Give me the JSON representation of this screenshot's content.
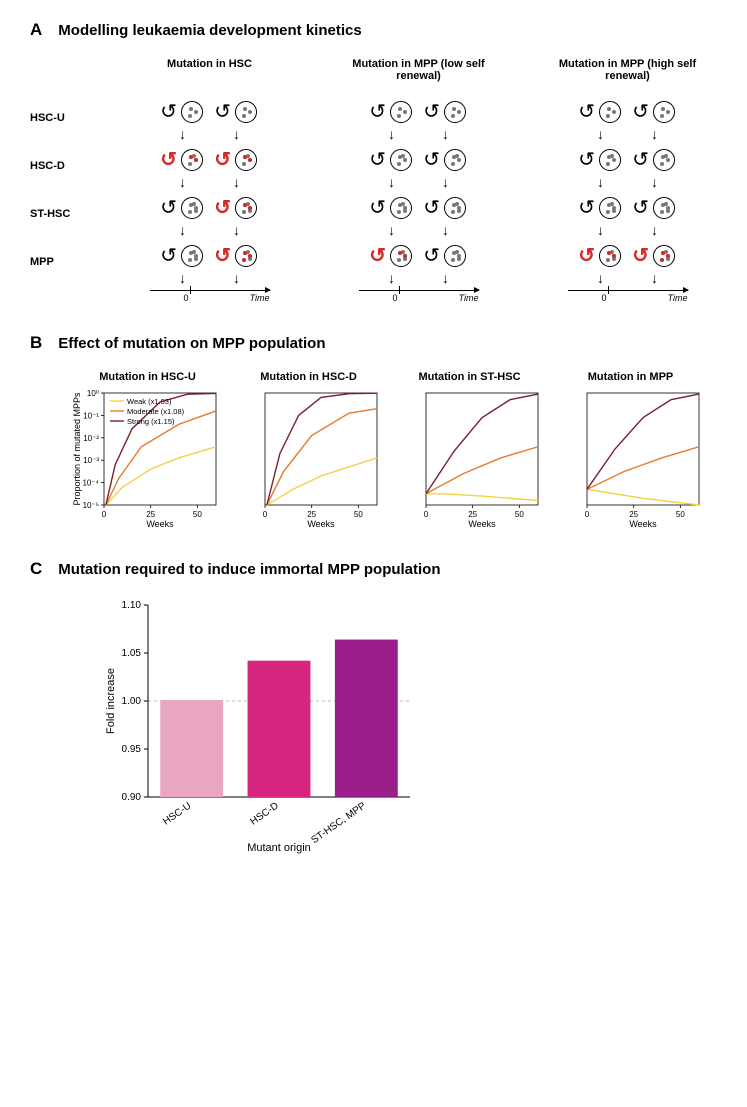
{
  "panelA": {
    "letter": "A",
    "title": "Modelling leukaemia development kinetics",
    "col_titles": [
      "Mutation in HSC",
      "Mutation in MPP (low self renewal)",
      "Mutation in MPP (high self renewal)"
    ],
    "row_labels": [
      "HSC-U",
      "HSC-D",
      "ST-HSC",
      "MPP"
    ],
    "time_zero": "0",
    "time_label": "Time",
    "scenarios": [
      {
        "rows": [
          {
            "left": {
              "self": "normal",
              "mutDots": 0
            },
            "right": {
              "self": "normal",
              "mutDots": 0
            }
          },
          {
            "left": {
              "self": "red",
              "mutDots": 2
            },
            "right": {
              "self": "red",
              "mutDots": 2
            }
          },
          {
            "left": {
              "self": "normal",
              "mutDots": 0
            },
            "right": {
              "self": "red",
              "mutDots": 2
            }
          },
          {
            "left": {
              "self": "normal",
              "mutDots": 0
            },
            "right": {
              "self": "red",
              "mutDots": 3
            }
          }
        ]
      },
      {
        "rows": [
          {
            "left": {
              "self": "normal",
              "mutDots": 0
            },
            "right": {
              "self": "normal",
              "mutDots": 0
            }
          },
          {
            "left": {
              "self": "normal",
              "mutDots": 0
            },
            "right": {
              "self": "normal",
              "mutDots": 0
            }
          },
          {
            "left": {
              "self": "normal",
              "mutDots": 0
            },
            "right": {
              "self": "normal",
              "mutDots": 0
            }
          },
          {
            "left": {
              "self": "red",
              "mutDots": 2
            },
            "right": {
              "self": "normal",
              "mutDots": 0
            }
          }
        ]
      },
      {
        "rows": [
          {
            "left": {
              "self": "normal",
              "mutDots": 0
            },
            "right": {
              "self": "normal",
              "mutDots": 0
            }
          },
          {
            "left": {
              "self": "normal",
              "mutDots": 0
            },
            "right": {
              "self": "normal",
              "mutDots": 0
            }
          },
          {
            "left": {
              "self": "normal",
              "mutDots": 0
            },
            "right": {
              "self": "normal",
              "mutDots": 0
            }
          },
          {
            "left": {
              "self": "red",
              "mutDots": 2
            },
            "right": {
              "self": "red",
              "mutDots": 3
            }
          }
        ]
      }
    ]
  },
  "panelB": {
    "letter": "B",
    "title": "Effect of mutation on MPP population",
    "ylabel": "Proportion of mutated MPPs",
    "xlabel": "Weeks",
    "xticks": [
      0,
      25,
      50
    ],
    "xlim": [
      0,
      60
    ],
    "ylim_log": [
      -5,
      0
    ],
    "ytick_labels": [
      "10⁻⁵",
      "10⁻⁴",
      "10⁻³",
      "10⁻²",
      "10⁻¹",
      "10⁰"
    ],
    "legend": [
      {
        "label": "Weak (x1.03)",
        "color": "#f5d142"
      },
      {
        "label": "Moderate (x1.08)",
        "color": "#e57b2e"
      },
      {
        "label": "Strong (x1.15)",
        "color": "#7a1f2b"
      }
    ],
    "charts": [
      {
        "title": "Mutation in HSC-U",
        "show_yticks": true,
        "show_legend": true,
        "series": [
          {
            "color": "#f5d142",
            "pts": [
              [
                1,
                -5
              ],
              [
                10,
                -4.2
              ],
              [
                25,
                -3.4
              ],
              [
                40,
                -2.9
              ],
              [
                60,
                -2.4
              ]
            ]
          },
          {
            "color": "#e57b2e",
            "pts": [
              [
                1,
                -5
              ],
              [
                8,
                -3.8
              ],
              [
                20,
                -2.4
              ],
              [
                40,
                -1.4
              ],
              [
                60,
                -0.8
              ]
            ]
          },
          {
            "color": "#7a1f2b",
            "pts": [
              [
                1,
                -5
              ],
              [
                6,
                -3.2
              ],
              [
                15,
                -1.6
              ],
              [
                30,
                -0.4
              ],
              [
                45,
                -0.05
              ],
              [
                60,
                -0.02
              ]
            ]
          }
        ]
      },
      {
        "title": "Mutation in HSC-D",
        "show_yticks": false,
        "series": [
          {
            "color": "#f5d142",
            "pts": [
              [
                1,
                -5
              ],
              [
                15,
                -4.3
              ],
              [
                30,
                -3.7
              ],
              [
                60,
                -2.9
              ]
            ]
          },
          {
            "color": "#e57b2e",
            "pts": [
              [
                1,
                -5
              ],
              [
                10,
                -3.5
              ],
              [
                25,
                -1.9
              ],
              [
                45,
                -0.9
              ],
              [
                60,
                -0.7
              ]
            ]
          },
          {
            "color": "#7a1f2b",
            "pts": [
              [
                1,
                -5
              ],
              [
                8,
                -2.7
              ],
              [
                18,
                -1.0
              ],
              [
                30,
                -0.2
              ],
              [
                45,
                -0.03
              ],
              [
                60,
                -0.01
              ]
            ]
          }
        ]
      },
      {
        "title": "Mutation in ST-HSC",
        "show_yticks": false,
        "series": [
          {
            "color": "#f5d142",
            "pts": [
              [
                0,
                -4.5
              ],
              [
                10,
                -4.5
              ],
              [
                30,
                -4.6
              ],
              [
                60,
                -4.8
              ]
            ]
          },
          {
            "color": "#e57b2e",
            "pts": [
              [
                0,
                -4.5
              ],
              [
                20,
                -3.6
              ],
              [
                40,
                -2.9
              ],
              [
                60,
                -2.4
              ]
            ]
          },
          {
            "color": "#7a1f2b",
            "pts": [
              [
                0,
                -4.5
              ],
              [
                15,
                -2.6
              ],
              [
                30,
                -1.1
              ],
              [
                45,
                -0.3
              ],
              [
                60,
                -0.05
              ]
            ]
          }
        ]
      },
      {
        "title": "Mutation in MPP",
        "show_yticks": false,
        "series": [
          {
            "color": "#f5d142",
            "pts": [
              [
                0,
                -4.3
              ],
              [
                15,
                -4.5
              ],
              [
                30,
                -4.7
              ],
              [
                60,
                -5.0
              ]
            ]
          },
          {
            "color": "#e57b2e",
            "pts": [
              [
                0,
                -4.3
              ],
              [
                20,
                -3.5
              ],
              [
                40,
                -2.9
              ],
              [
                60,
                -2.4
              ]
            ]
          },
          {
            "color": "#7a1f2b",
            "pts": [
              [
                0,
                -4.3
              ],
              [
                15,
                -2.5
              ],
              [
                30,
                -1.1
              ],
              [
                45,
                -0.3
              ],
              [
                60,
                -0.05
              ]
            ]
          }
        ]
      }
    ]
  },
  "panelC": {
    "letter": "C",
    "title": "Mutation required to induce immortal MPP population",
    "ylabel": "Fold increase",
    "xlabel": "Mutant origin",
    "ylim": [
      0.9,
      1.1
    ],
    "yticks": [
      0.9,
      0.95,
      1.0,
      1.05,
      1.1
    ],
    "ref_line": 1.0,
    "ref_color": "#bbbbbb",
    "bars": [
      {
        "label": "HSC-U",
        "value": 1.001,
        "color": "#e8a6c2"
      },
      {
        "label": "HSC-D",
        "value": 1.042,
        "color": "#d6267f"
      },
      {
        "label": "ST-HSC, MPP",
        "value": 1.064,
        "color": "#9b1f8a"
      }
    ],
    "bar_width": 0.72,
    "axis_color": "#000000",
    "font_size_ticks": 10,
    "font_size_label": 11
  }
}
